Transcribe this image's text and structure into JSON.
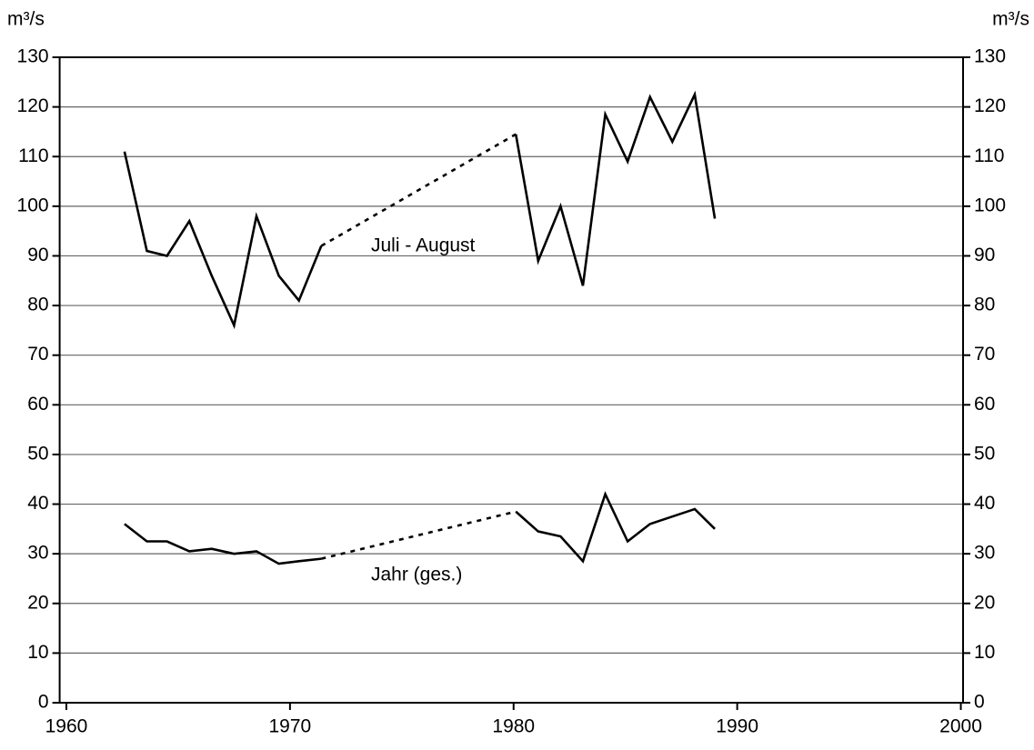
{
  "chart_data": {
    "type": "line",
    "y_unit_label_left": "m³/s",
    "y_unit_label_right": "m³/s",
    "annotations": [
      "Juli - August",
      "Jahr (ges.)"
    ],
    "x": [
      1962.6,
      1963.6,
      1964.5,
      1965.5,
      1966.5,
      1967.5,
      1968.5,
      1969.5,
      1970.4,
      1971.4,
      1972.3,
      1973.3,
      1974.2,
      1975.2,
      1976.2,
      1977.2,
      1978.2,
      1979.2,
      1980.1,
      1981.1,
      1982.1,
      1983.1,
      1984.1,
      1985.1,
      1986.1,
      1987.1,
      1988.1,
      1989.0
    ],
    "series": [
      {
        "name": "Juli - August",
        "color": "#000000",
        "values": [
          111,
          91,
          90,
          97,
          86,
          76,
          98,
          86,
          81,
          92,
          null,
          null,
          null,
          null,
          null,
          null,
          null,
          null,
          114.5,
          89,
          100,
          84,
          118.5,
          109,
          122,
          113,
          122.5,
          97.5
        ]
      },
      {
        "name": "Jahr (ges.)",
        "color": "#000000",
        "values": [
          36,
          32.5,
          32.5,
          30.5,
          31,
          30,
          30.5,
          28,
          28.5,
          29,
          null,
          null,
          null,
          null,
          null,
          null,
          null,
          null,
          38.5,
          34.5,
          33.5,
          28.5,
          42,
          32.5,
          36,
          37.5,
          39,
          35
        ]
      }
    ],
    "gap_line": "dotted",
    "xlim": [
      1959.7,
      2000.1
    ],
    "xticks": [
      1960,
      1970,
      1980,
      1990,
      2000
    ],
    "ylim": [
      0,
      130
    ],
    "yticks": [
      0,
      10,
      20,
      30,
      40,
      50,
      60,
      70,
      80,
      90,
      100,
      110,
      120,
      130
    ],
    "grid": true
  }
}
